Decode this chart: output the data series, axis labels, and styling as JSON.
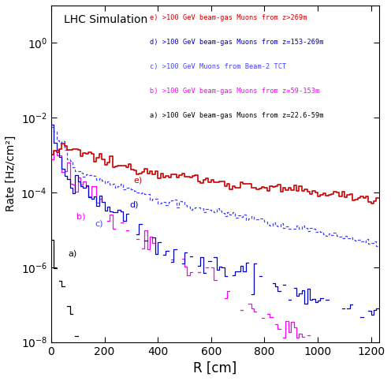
{
  "title": "LHC Simulation",
  "xlabel": "R [cm]",
  "ylabel": "Rate [Hz/cm²]",
  "xlim": [
    0,
    1230
  ],
  "ylim_log": [
    -8,
    1
  ],
  "legend_entries": [
    "e) >100 GeV beam-gas Muons from z>269m",
    "d) >100 GeV beam-gas Muons from z=153-269m",
    "c) >100 GeV Muons from Beam-2 TCT",
    "b) >100 GeV beam-gas Muons from z=59-153m",
    "a) >100 GeV beam-gas Muons from z=22.6-59m"
  ],
  "colors": {
    "a": "#000000",
    "b": "#ff00ff",
    "c": "#4444ff",
    "d": "#0000cc",
    "e": "#cc0000"
  },
  "label_x_r": [
    65,
    95,
    165,
    295,
    310
  ],
  "label_y_r": [
    2e-06,
    2e-05,
    1.3e-05,
    4e-05,
    0.00018
  ],
  "label_names": [
    "a)",
    "b)",
    "c)",
    "d)",
    "e)"
  ]
}
